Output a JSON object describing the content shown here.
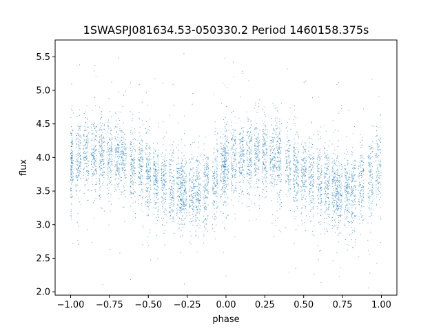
{
  "chart_data": {
    "type": "scatter",
    "title": "1SWASPJ081634.53-050330.2 Period 1460158.375s",
    "xlabel": "phase",
    "ylabel": "flux",
    "xlim": [
      -1.1,
      1.1
    ],
    "ylim": [
      1.95,
      5.75
    ],
    "x_ticks": [
      -1.0,
      -0.75,
      -0.5,
      -0.25,
      0.0,
      0.25,
      0.5,
      0.75,
      1.0
    ],
    "x_tick_labels": [
      "−1.00",
      "−0.75",
      "−0.50",
      "−0.25",
      "0.00",
      "0.25",
      "0.50",
      "0.75",
      "1.00"
    ],
    "y_ticks": [
      2.0,
      2.5,
      3.0,
      3.5,
      4.0,
      4.5,
      5.0,
      5.5
    ],
    "y_tick_labels": [
      "2.0",
      "2.5",
      "3.0",
      "3.5",
      "4.0",
      "4.5",
      "5.0",
      "5.5"
    ],
    "grid": false,
    "point_color": "#1f77b4",
    "series": [
      {
        "profile_phase": [
          -1.0,
          -0.9,
          -0.8,
          -0.7,
          -0.6,
          -0.5,
          -0.4,
          -0.3,
          -0.2,
          -0.1,
          0.0,
          0.1,
          0.2,
          0.3,
          0.4,
          0.5,
          0.6,
          0.7,
          0.8,
          0.9,
          1.0
        ],
        "profile_flux": [
          3.9,
          4.05,
          4.05,
          4.0,
          3.9,
          3.75,
          3.62,
          3.52,
          3.48,
          3.6,
          3.9,
          4.05,
          4.05,
          4.0,
          3.9,
          3.75,
          3.62,
          3.52,
          3.48,
          3.6,
          3.9
        ],
        "scatter_std": 0.28,
        "phase_clusters": [
          -1.0,
          -0.95,
          -0.9,
          -0.85,
          -0.8,
          -0.75,
          -0.7,
          -0.66,
          -0.6,
          -0.55,
          -0.5,
          -0.45,
          -0.4,
          -0.35,
          -0.3,
          -0.27,
          -0.22,
          -0.18,
          -0.13,
          -0.07,
          -0.02,
          0.0,
          0.05,
          0.1,
          0.15,
          0.2,
          0.25,
          0.3,
          0.34,
          0.4,
          0.45,
          0.5,
          0.55,
          0.6,
          0.65,
          0.7,
          0.73,
          0.78,
          0.82,
          0.87,
          0.93,
          0.98
        ],
        "phase_range": [
          -1.0,
          1.0
        ]
      }
    ]
  }
}
